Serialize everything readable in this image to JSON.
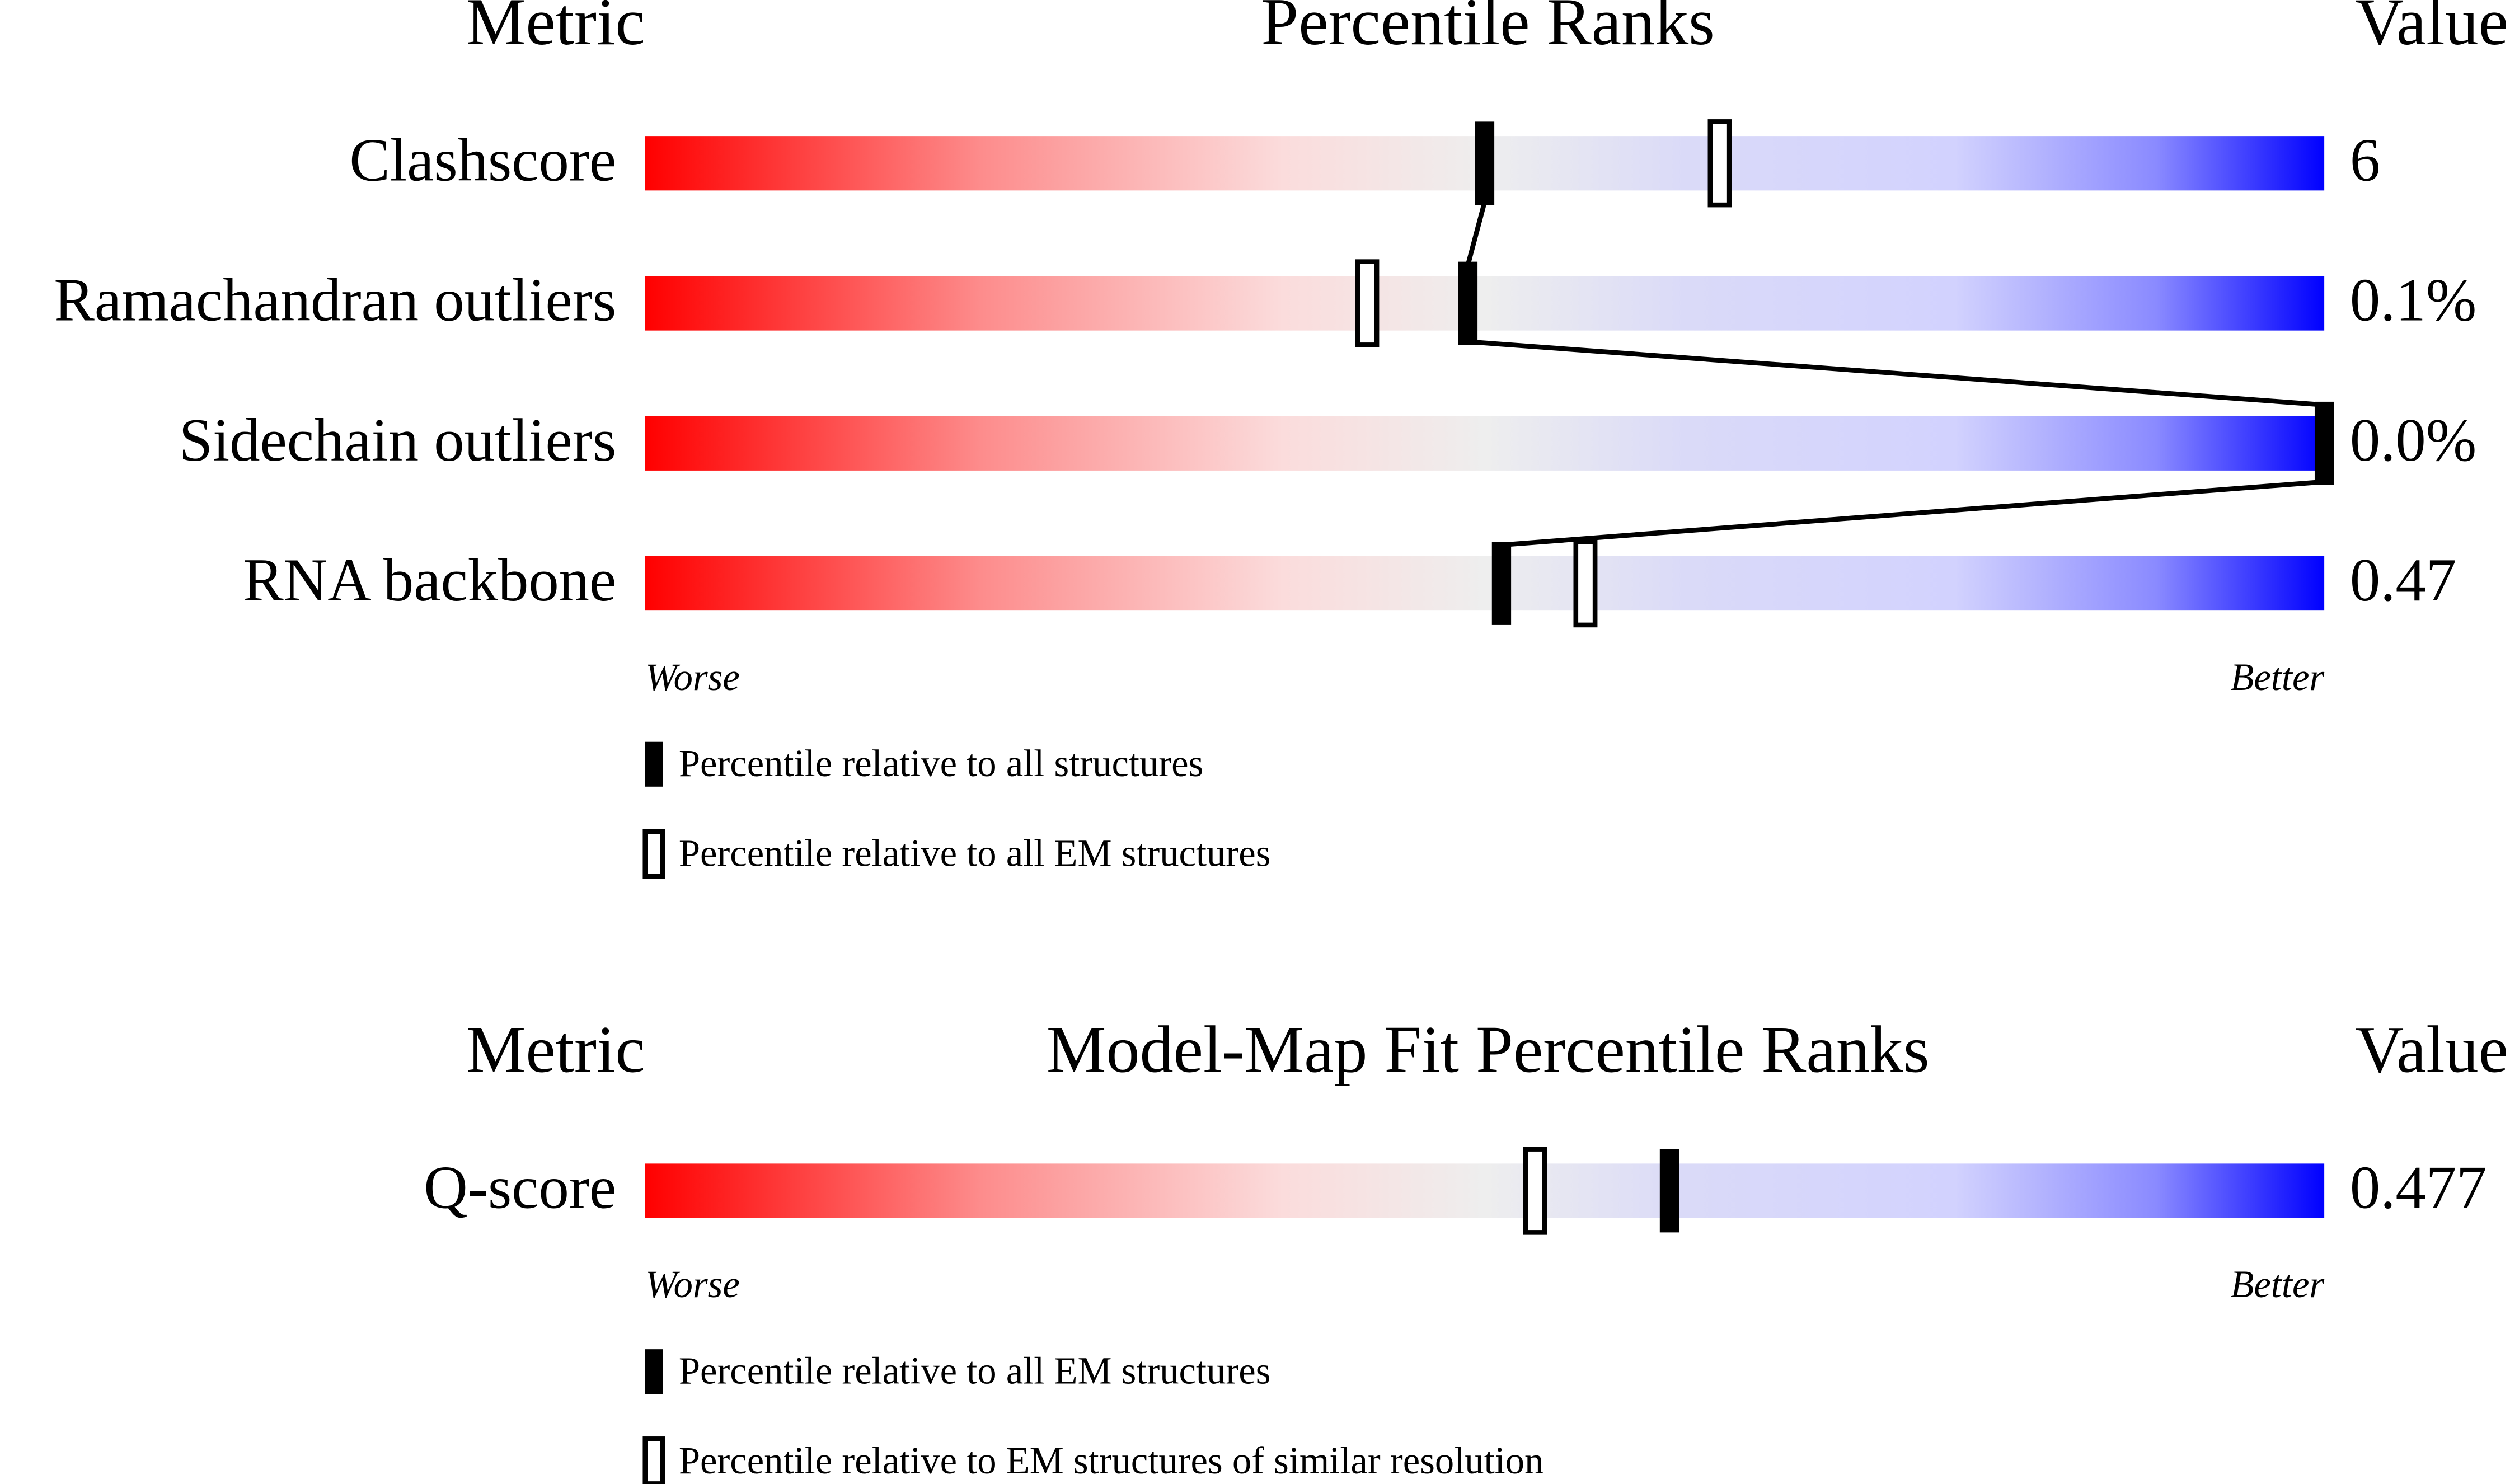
{
  "chart_data": [
    {
      "type": "percentile-slider",
      "headers": {
        "metric": "Metric",
        "title": "Percentile Ranks",
        "value": "Value"
      },
      "categories": [
        "Clashscore",
        "Ramachandran outliers",
        "Sidechain outliers",
        "RNA backbone"
      ],
      "value_text": [
        "6",
        "0.1%",
        "0.0%",
        "0.47"
      ],
      "xlim": [
        0,
        100
      ],
      "axis_labels": {
        "low": "Worse",
        "high": "Better"
      },
      "series": [
        {
          "name": "Percentile relative to all structures",
          "style": "filled",
          "color": "#000000",
          "connected": true,
          "values": [
            50,
            49,
            100,
            51
          ]
        },
        {
          "name": "Percentile relative to all EM structures",
          "style": "open",
          "color": "#000000",
          "connected": false,
          "values": [
            64,
            43,
            null,
            56
          ]
        }
      ]
    },
    {
      "type": "percentile-slider",
      "headers": {
        "metric": "Metric",
        "title": "Model-Map Fit Percentile Ranks",
        "value": "Value"
      },
      "categories": [
        "Q-score"
      ],
      "value_text": [
        "0.477"
      ],
      "xlim": [
        0,
        100
      ],
      "axis_labels": {
        "low": "Worse",
        "high": "Better"
      },
      "series": [
        {
          "name": "Percentile relative to all EM structures",
          "style": "filled",
          "color": "#000000",
          "connected": true,
          "values": [
            61
          ]
        },
        {
          "name": "Percentile relative to EM structures of similar resolution",
          "style": "open",
          "color": "#000000",
          "connected": false,
          "values": [
            53
          ]
        }
      ]
    }
  ]
}
